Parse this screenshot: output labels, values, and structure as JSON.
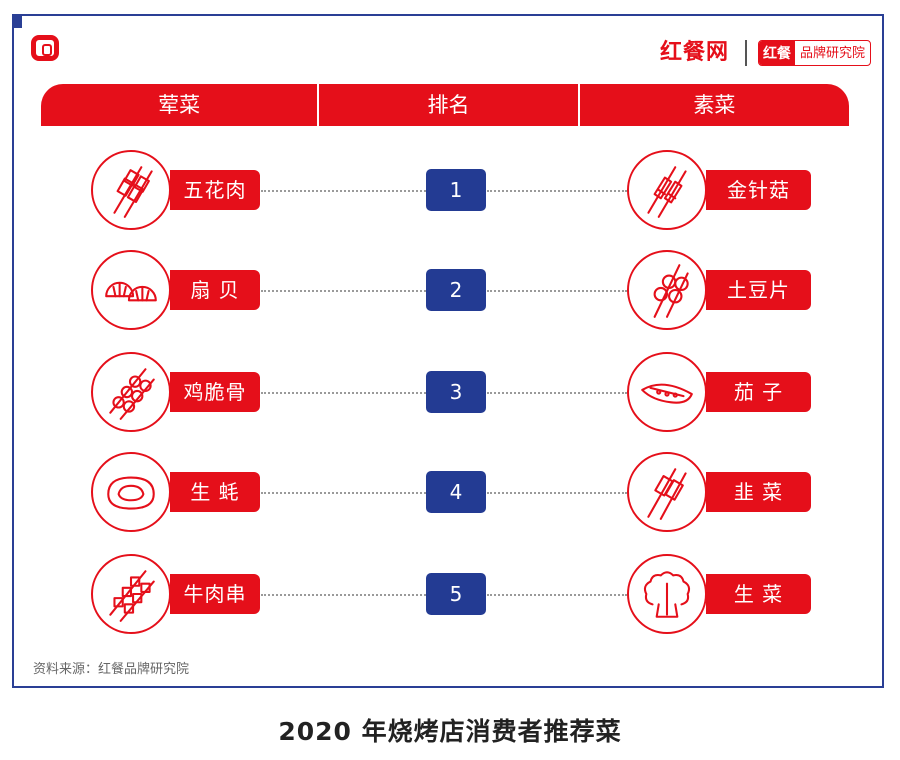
{
  "header": {
    "col_left": "荤菜",
    "col_mid": "排名",
    "col_right": "素菜"
  },
  "brand": {
    "main": "红餐网",
    "sub_a": "红餐",
    "sub_b": "品牌研究院"
  },
  "rows": [
    {
      "rank": "1",
      "meat": "五花肉",
      "meat_icon": "skewer-icon",
      "veg": "金针菇",
      "veg_icon": "mushroom-skewer-icon"
    },
    {
      "rank": "2",
      "meat": "扇 贝",
      "meat_icon": "scallop-icon",
      "veg": "土豆片",
      "veg_icon": "potato-skewer-icon"
    },
    {
      "rank": "3",
      "meat": "鸡脆骨",
      "meat_icon": "ball-skewer-icon",
      "veg": "茄 子",
      "veg_icon": "eggplant-icon"
    },
    {
      "rank": "4",
      "meat": "生 蚝",
      "meat_icon": "oyster-icon",
      "veg": "韭 菜",
      "veg_icon": "chive-skewer-icon"
    },
    {
      "rank": "5",
      "meat": "牛肉串",
      "meat_icon": "beef-skewer-icon",
      "veg": "生 菜",
      "veg_icon": "lettuce-icon"
    }
  ],
  "source": "资料来源：红餐品牌研究院",
  "caption": "2020 年烧烤店消费者推荐菜",
  "colors": {
    "red": "#e50f1a",
    "blue": "#233b93",
    "frame": "#2a3f95"
  }
}
